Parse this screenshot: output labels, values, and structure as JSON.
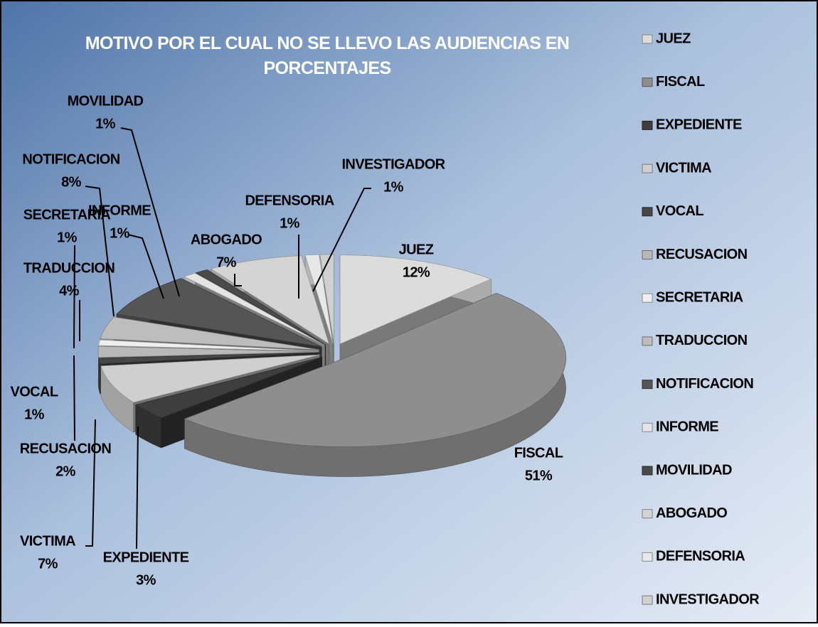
{
  "chart_data": {
    "type": "pie",
    "title": "MOTIVO POR EL CUAL NO SE LLEVO LAS AUDIENCIAS EN PORCENTAJES",
    "categories": [
      "JUEZ",
      "FISCAL",
      "EXPEDIENTE",
      "VICTIMA",
      "VOCAL",
      "RECUSACION",
      "SECRETARIA",
      "TRADUCCION",
      "NOTIFICACION",
      "INFORME",
      "MOVILIDAD",
      "ABOGADO",
      "DEFENSORIA",
      "INVESTIGADOR"
    ],
    "values": [
      12,
      51,
      3,
      7,
      1,
      2,
      1,
      4,
      8,
      1,
      1,
      7,
      1,
      1
    ],
    "value_labels": [
      "12%",
      "51%",
      "3%",
      "7%",
      "1%",
      "2%",
      "1%",
      "4%",
      "8%",
      "1%",
      "1%",
      "7%",
      "1%",
      "1%"
    ],
    "colors": [
      "#dcdcdc",
      "#8e8e8e",
      "#3e3e3e",
      "#cfcfcf",
      "#474747",
      "#b8b8b8",
      "#efefef",
      "#bdbdbd",
      "#555555",
      "#e4e4e4",
      "#4a4a4a",
      "#d4d4d4",
      "#e8e8e8",
      "#d0d0d0"
    ],
    "legend": "right"
  }
}
